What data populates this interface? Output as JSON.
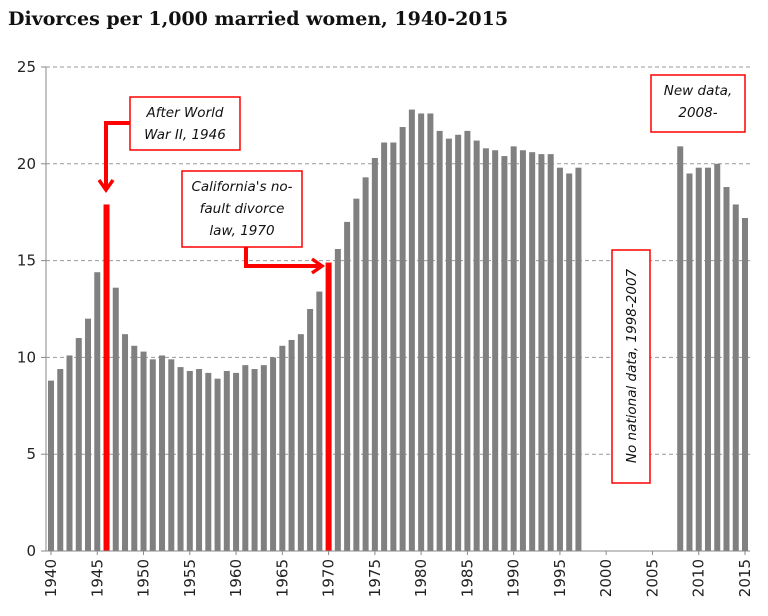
{
  "chart_data": {
    "type": "bar",
    "title": "Divorces per 1,000 married women, 1940-2015",
    "xlabel": "",
    "ylabel": "",
    "ylim": [
      0,
      25
    ],
    "yticks": [
      0,
      5,
      10,
      15,
      20,
      25
    ],
    "xticks": [
      1940,
      1945,
      1950,
      1955,
      1960,
      1965,
      1970,
      1975,
      1980,
      1985,
      1990,
      1995,
      2000,
      2005,
      2010,
      2015
    ],
    "grid": "horizontal dashed",
    "colors": {
      "bar": "#808080",
      "highlight": "#ff0000",
      "annotation_border": "#ff0000"
    },
    "highlight_years": [
      1946,
      1970
    ],
    "x": [
      1940,
      1941,
      1942,
      1943,
      1944,
      1945,
      1946,
      1947,
      1948,
      1949,
      1950,
      1951,
      1952,
      1953,
      1954,
      1955,
      1956,
      1957,
      1958,
      1959,
      1960,
      1961,
      1962,
      1963,
      1964,
      1965,
      1966,
      1967,
      1968,
      1969,
      1970,
      1971,
      1972,
      1973,
      1974,
      1975,
      1976,
      1977,
      1978,
      1979,
      1980,
      1981,
      1982,
      1983,
      1984,
      1985,
      1986,
      1987,
      1988,
      1989,
      1990,
      1991,
      1992,
      1993,
      1994,
      1995,
      1996,
      1997,
      1998,
      1999,
      2000,
      2001,
      2002,
      2003,
      2004,
      2005,
      2006,
      2007,
      2008,
      2009,
      2010,
      2011,
      2012,
      2013,
      2014,
      2015
    ],
    "values": [
      8.8,
      9.4,
      10.1,
      11.0,
      12.0,
      14.4,
      17.9,
      13.6,
      11.2,
      10.6,
      10.3,
      9.9,
      10.1,
      9.9,
      9.5,
      9.3,
      9.4,
      9.2,
      8.9,
      9.3,
      9.2,
      9.6,
      9.4,
      9.6,
      10.0,
      10.6,
      10.9,
      11.2,
      12.5,
      13.4,
      14.9,
      15.6,
      17.0,
      18.2,
      19.3,
      20.3,
      21.1,
      21.1,
      21.9,
      22.8,
      22.6,
      22.6,
      21.7,
      21.3,
      21.5,
      21.7,
      21.2,
      20.8,
      20.7,
      20.4,
      20.9,
      20.7,
      20.6,
      20.5,
      20.5,
      19.8,
      19.5,
      19.8,
      null,
      null,
      null,
      null,
      null,
      null,
      null,
      null,
      null,
      null,
      20.9,
      19.5,
      19.8,
      19.8,
      20.0,
      18.8,
      17.9,
      17.2
    ],
    "annotations": [
      {
        "lines": [
          "After World",
          "War II, 1946"
        ],
        "target_year": 1946
      },
      {
        "lines": [
          "California's no-",
          "fault divorce",
          "law, 1970"
        ],
        "target_year": 1970
      },
      {
        "lines": [
          "New data,",
          "2008-"
        ]
      },
      {
        "lines": [
          "No national data, 1998-2007"
        ],
        "orientation": "vertical"
      }
    ]
  }
}
